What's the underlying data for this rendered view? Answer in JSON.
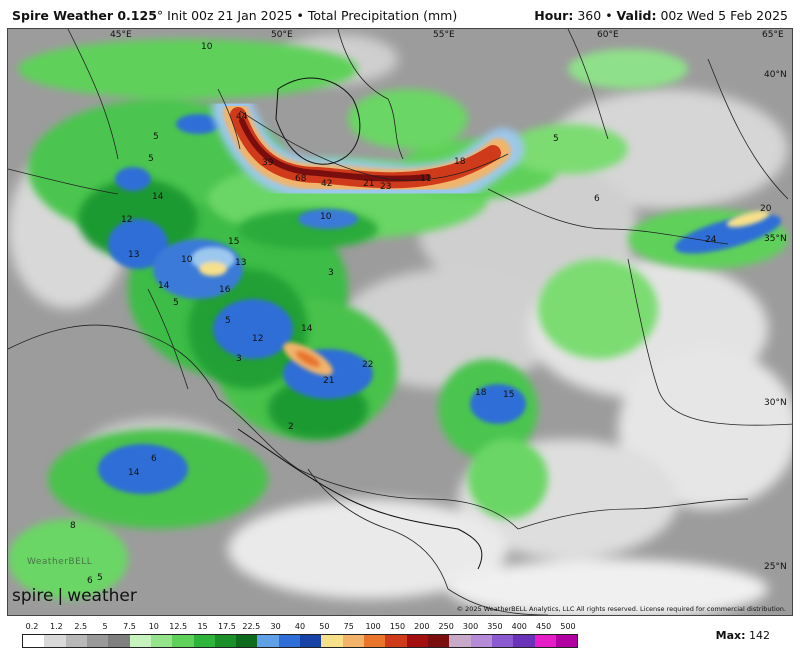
{
  "header": {
    "model": "Spire Weather 0.125",
    "degree": "°",
    "init": "Init 00z 21 Jan 2025",
    "bullet": "•",
    "product": "Total Precipitation (mm)",
    "hour_label": "Hour:",
    "hour_value": "360",
    "valid_label": "Valid:",
    "valid_value": "00z Wed 5 Feb 2025"
  },
  "map": {
    "longitude_labels": [
      "45°E",
      "50°E",
      "55°E",
      "60°E",
      "65°E"
    ],
    "latitude_labels": [
      "40°N",
      "35°N",
      "30°N",
      "25°N"
    ],
    "value_labels": [
      "10",
      "5",
      "5",
      "14",
      "12",
      "13",
      "10",
      "14",
      "15",
      "13",
      "16",
      "14",
      "12",
      "21",
      "22",
      "44",
      "39",
      "68",
      "42",
      "21",
      "23",
      "18",
      "11",
      "10",
      "5",
      "6",
      "20",
      "24",
      "18",
      "15",
      "14",
      "6",
      "8",
      "5",
      "3",
      "3",
      "2",
      "5",
      "6",
      "5"
    ],
    "precip_colors": {
      "light_gray": "#d9d9d9",
      "mid_gray": "#8a8a8a",
      "light_green": "#8fe08a",
      "green": "#3ec24a",
      "dark_green": "#1c9a30",
      "blue": "#2f6ed6",
      "light_blue": "#9cc8ee",
      "yellow": "#f7e08a",
      "orange": "#e8752a",
      "red": "#c01818",
      "dark_red": "#7a0d0d"
    }
  },
  "branding": {
    "logo_spire": "spire",
    "logo_separator": "|",
    "logo_weather": "weather",
    "watermark": "WeatherBELL",
    "copyright": "© 2025 WeatherBELL Analytics, LLC  All rights reserved. License required for commercial distribution."
  },
  "legend": {
    "ticks": [
      "0.2",
      "1.2",
      "2.5",
      "5",
      "7.5",
      "10",
      "12.5",
      "15",
      "17.5",
      "22.5",
      "30",
      "40",
      "50",
      "75",
      "100",
      "150",
      "200",
      "250",
      "300",
      "350",
      "400",
      "450",
      "500"
    ],
    "colors": [
      "#ffffff",
      "#d9d9d9",
      "#b8b8b8",
      "#999999",
      "#7f7f7f",
      "#c6f2be",
      "#95e38a",
      "#5fd15a",
      "#2fb43b",
      "#1a8f2a",
      "#0e6b1e",
      "#5fa0e6",
      "#2f6ed6",
      "#1742a6",
      "#f7e08a",
      "#f1b46a",
      "#e8752a",
      "#cf3a1a",
      "#a30f0f",
      "#7a0d0d",
      "#c9a9c9",
      "#b58ad6",
      "#8c5ad0",
      "#6a32b8",
      "#e61ec8",
      "#b000a0"
    ]
  },
  "max": {
    "label": "Max:",
    "value": "142"
  }
}
